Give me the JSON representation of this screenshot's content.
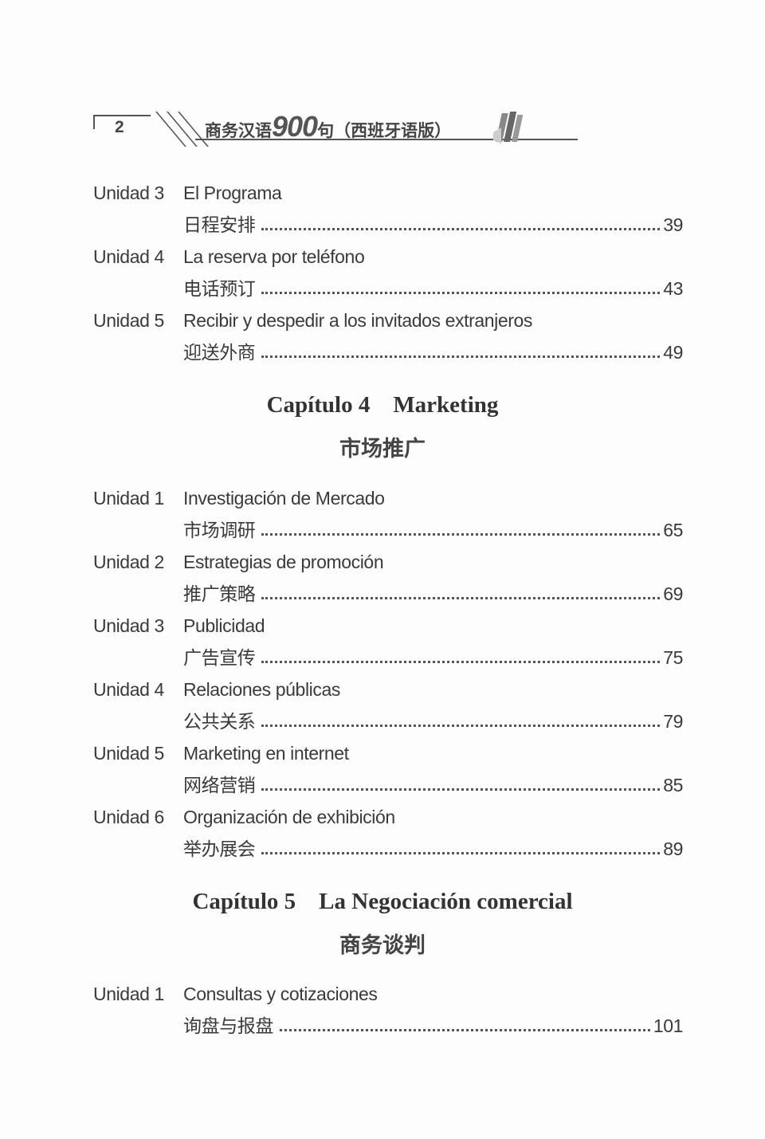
{
  "header": {
    "page_number": "2",
    "title_prefix": "商务汉语",
    "title_number": "900",
    "title_suffix": "句（西班牙语版）"
  },
  "entries_a": [
    {
      "unit": "Unidad 3",
      "es": "El Programa",
      "zh": "日程安排",
      "page": "39"
    },
    {
      "unit": "Unidad 4",
      "es": "La reserva por teléfono",
      "zh": "电话预订",
      "page": "43"
    },
    {
      "unit": "Unidad 5",
      "es": "Recibir y despedir a los invitados extranjeros",
      "zh": "迎送外商",
      "page": "49"
    }
  ],
  "chapter4": {
    "title": "Capítulo 4    Marketing",
    "zh": "市场推广"
  },
  "entries_b": [
    {
      "unit": "Unidad 1",
      "es": "Investigación de Mercado",
      "zh": "市场调研",
      "page": "65"
    },
    {
      "unit": "Unidad 2",
      "es": "Estrategias de promoción",
      "zh": "推广策略",
      "page": "69"
    },
    {
      "unit": "Unidad 3",
      "es": "Publicidad",
      "zh": "广告宣传",
      "page": "75"
    },
    {
      "unit": "Unidad 4",
      "es": "Relaciones públicas",
      "zh": "公共关系",
      "page": "79"
    },
    {
      "unit": "Unidad 5",
      "es": "Marketing en internet",
      "zh": "网络营销",
      "page": "85"
    },
    {
      "unit": "Unidad 6",
      "es": "Organización de exhibición",
      "zh": "举办展会",
      "page": "89"
    }
  ],
  "chapter5": {
    "title": "Capítulo 5    La Negociación comercial",
    "zh": "商务谈判"
  },
  "entries_c": [
    {
      "unit": "Unidad 1",
      "es": "Consultas y cotizaciones",
      "zh": "询盘与报盘",
      "page": "101"
    }
  ]
}
